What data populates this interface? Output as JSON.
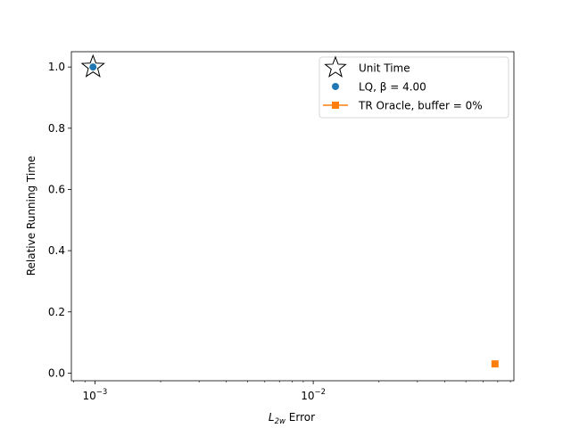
{
  "chart_data": {
    "type": "scatter",
    "title": "",
    "xlabel": {
      "base": "L",
      "sub": "2w",
      "rest": " Error"
    },
    "ylabel": "Relative Running Time",
    "xscale": "log",
    "xlim": [
      0.00078,
      0.083
    ],
    "ylim": [
      -0.025,
      1.05
    ],
    "xticks": [
      {
        "value": 0.001,
        "base": "10",
        "exp": "−3"
      },
      {
        "value": 0.01,
        "base": "10",
        "exp": "−2"
      }
    ],
    "yticks": [
      {
        "value": 0.0,
        "label": "0.0"
      },
      {
        "value": 0.2,
        "label": "0.2"
      },
      {
        "value": 0.4,
        "label": "0.4"
      },
      {
        "value": 0.6,
        "label": "0.6"
      },
      {
        "value": 0.8,
        "label": "0.8"
      },
      {
        "value": 1.0,
        "label": "1.0"
      }
    ],
    "grid": false,
    "legend_position": "top-right",
    "series": [
      {
        "name": "Unit Time",
        "marker": "star",
        "color": "#ffffff",
        "edge": "#000000",
        "x": [
          0.00098
        ],
        "y": [
          1.0
        ]
      },
      {
        "name": "LQ, β = 4.00",
        "marker": "circle",
        "color": "#1f77b4",
        "x": [
          0.00098
        ],
        "y": [
          1.0
        ]
      },
      {
        "name": "TR Oracle, buffer = 0%",
        "marker": "square-line",
        "color": "#ff7f0e",
        "x": [
          0.068
        ],
        "y": [
          0.03
        ]
      }
    ]
  }
}
